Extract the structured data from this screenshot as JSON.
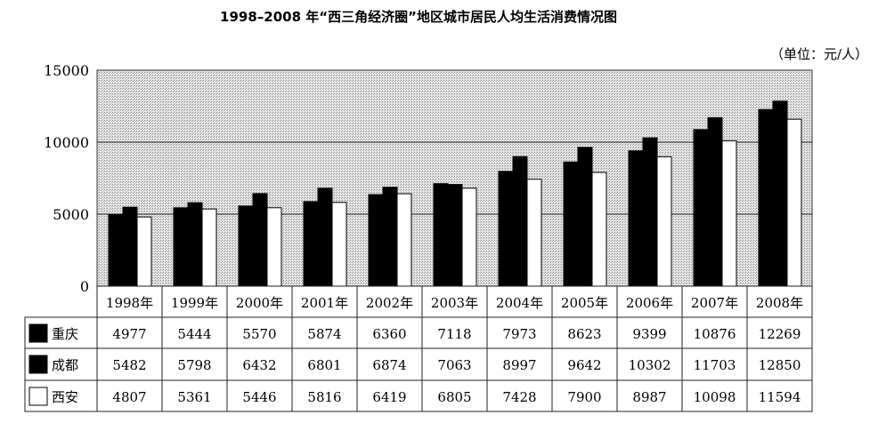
{
  "chart_data": {
    "type": "bar",
    "title": "1998–2008 年“西三角经济圈”地区城市居民人均生活消费情况图",
    "unit": "（单位：元/人）",
    "categories": [
      "1998年",
      "1999年",
      "2000年",
      "2001年",
      "2002年",
      "2003年",
      "2004年",
      "2005年",
      "2006年",
      "2007年",
      "2008年"
    ],
    "series": [
      {
        "name": "重庆",
        "color": "#000000",
        "values": [
          4977,
          5444,
          5570,
          5874,
          6360,
          7118,
          7973,
          8623,
          9399,
          10876,
          12269
        ]
      },
      {
        "name": "成都",
        "color": "#000000",
        "values": [
          5482,
          5798,
          6432,
          6801,
          6874,
          7063,
          8997,
          9642,
          10302,
          11703,
          12850
        ]
      },
      {
        "name": "西安",
        "color": "#ffffff",
        "values": [
          4807,
          5361,
          5446,
          5816,
          6419,
          6805,
          7428,
          7900,
          8987,
          10098,
          11594
        ]
      }
    ],
    "ylim": [
      0,
      15000
    ],
    "yticks": [
      "0",
      "5000",
      "10000",
      "15000"
    ],
    "grid": true,
    "legend": "data-table-below",
    "plot_background": "#d8d8d8"
  }
}
